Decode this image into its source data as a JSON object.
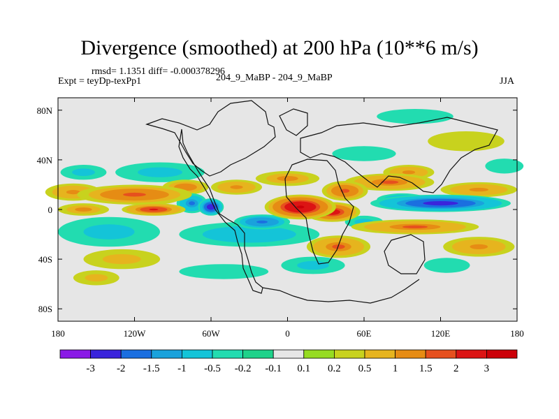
{
  "chart_data": {
    "type": "heatmap",
    "title": "Divergence (smoothed) at 200 hPa (10**6 m/s)",
    "stats": "rmsd= 1.1351 diff= -0.000378296",
    "experiment": "Expt = teyDp-texPp1",
    "case": "204_9_MaBP - 204_9_MaBP",
    "season": "JJA",
    "lon_range": [
      -180,
      180
    ],
    "lat_range": [
      -90,
      90
    ],
    "x_ticks": [
      {
        "value": -180,
        "label": "180"
      },
      {
        "value": -120,
        "label": "120W"
      },
      {
        "value": -60,
        "label": "60W"
      },
      {
        "value": 0,
        "label": "0"
      },
      {
        "value": 60,
        "label": "60E"
      },
      {
        "value": 120,
        "label": "120E"
      },
      {
        "value": 180,
        "label": "180"
      }
    ],
    "y_ticks": [
      {
        "value": 80,
        "label": "80N"
      },
      {
        "value": 40,
        "label": "40N"
      },
      {
        "value": 0,
        "label": "0"
      },
      {
        "value": -40,
        "label": "40S"
      },
      {
        "value": -80,
        "label": "80S"
      }
    ],
    "levels": [
      "-3",
      "-2",
      "-1.5",
      "-1",
      "-0.5",
      "-0.2",
      "-0.1",
      "0.1",
      "0.2",
      "0.5",
      "1",
      "1.5",
      "2",
      "3"
    ],
    "colors": [
      "#8a1ae6",
      "#3a24dc",
      "#1b6fe0",
      "#1aa2dc",
      "#14c4d8",
      "#22dcb0",
      "#1ed28a",
      "#e6e6e6",
      "#96dc22",
      "#c8d21e",
      "#e6b41e",
      "#e68c14",
      "#e6501e",
      "#dc1414",
      "#cc0008"
    ],
    "features": [
      {
        "lon": -120,
        "lat": 12,
        "rx": 45,
        "ry": 8,
        "v": 1.7
      },
      {
        "lon": -105,
        "lat": 10,
        "rx": 22,
        "ry": 6,
        "v": 1.4
      },
      {
        "lon": -168,
        "lat": 14,
        "rx": 22,
        "ry": 7,
        "v": 1.3
      },
      {
        "lon": -160,
        "lat": 0,
        "rx": 20,
        "ry": 5,
        "v": 1.0
      },
      {
        "lon": -105,
        "lat": 0,
        "rx": 25,
        "ry": 5,
        "v": 2.2
      },
      {
        "lon": -80,
        "lat": 18,
        "rx": 18,
        "ry": 6,
        "v": 1.4
      },
      {
        "lon": -40,
        "lat": 18,
        "rx": 20,
        "ry": 6,
        "v": 1.2
      },
      {
        "lon": 10,
        "lat": 2,
        "rx": 28,
        "ry": 10,
        "v": 3.0
      },
      {
        "lon": 35,
        "lat": -2,
        "rx": 22,
        "ry": 8,
        "v": 2.4
      },
      {
        "lon": 45,
        "lat": 15,
        "rx": 18,
        "ry": 8,
        "v": 1.8
      },
      {
        "lon": 0,
        "lat": 25,
        "rx": 25,
        "ry": 6,
        "v": 1.1
      },
      {
        "lon": 80,
        "lat": 22,
        "rx": 35,
        "ry": 7,
        "v": 1.5
      },
      {
        "lon": 95,
        "lat": 30,
        "rx": 20,
        "ry": 6,
        "v": 1.2
      },
      {
        "lon": 150,
        "lat": 16,
        "rx": 30,
        "ry": 6,
        "v": 1.3
      },
      {
        "lon": 100,
        "lat": -14,
        "rx": 50,
        "ry": 6,
        "v": 1.6
      },
      {
        "lon": 40,
        "lat": -30,
        "rx": 25,
        "ry": 9,
        "v": 1.6
      },
      {
        "lon": 150,
        "lat": -30,
        "rx": 28,
        "ry": 8,
        "v": 1.2
      },
      {
        "lon": -130,
        "lat": -40,
        "rx": 30,
        "ry": 8,
        "v": 0.7
      },
      {
        "lon": -150,
        "lat": -55,
        "rx": 18,
        "ry": 6,
        "v": 0.5
      },
      {
        "lon": -60,
        "lat": 2,
        "rx": 10,
        "ry": 7,
        "v": -3.0
      },
      {
        "lon": -75,
        "lat": 5,
        "rx": 12,
        "ry": 8,
        "v": -1.6
      },
      {
        "lon": -20,
        "lat": -10,
        "rx": 22,
        "ry": 6,
        "v": -1.8
      },
      {
        "lon": 120,
        "lat": 5,
        "rx": 55,
        "ry": 7,
        "v": -2.6
      },
      {
        "lon": 90,
        "lat": 8,
        "rx": 20,
        "ry": 5,
        "v": -1.4
      },
      {
        "lon": -30,
        "lat": -20,
        "rx": 55,
        "ry": 10,
        "v": -0.9
      },
      {
        "lon": -140,
        "lat": -18,
        "rx": 40,
        "ry": 12,
        "v": -0.7
      },
      {
        "lon": -100,
        "lat": 30,
        "rx": 35,
        "ry": 8,
        "v": -0.6
      },
      {
        "lon": -160,
        "lat": 30,
        "rx": 18,
        "ry": 6,
        "v": -0.6
      },
      {
        "lon": 20,
        "lat": -45,
        "rx": 25,
        "ry": 7,
        "v": -0.6
      },
      {
        "lon": 125,
        "lat": -45,
        "rx": 18,
        "ry": 6,
        "v": -0.5
      },
      {
        "lon": 60,
        "lat": -10,
        "rx": 15,
        "ry": 5,
        "v": -0.8
      },
      {
        "lon": 100,
        "lat": 75,
        "rx": 30,
        "ry": 6,
        "v": -0.4
      },
      {
        "lon": 140,
        "lat": 55,
        "rx": 30,
        "ry": 8,
        "v": 0.3
      },
      {
        "lon": 170,
        "lat": 35,
        "rx": 15,
        "ry": 6,
        "v": -0.5
      },
      {
        "lon": -50,
        "lat": -50,
        "rx": 35,
        "ry": 6,
        "v": -0.5
      },
      {
        "lon": 60,
        "lat": 45,
        "rx": 25,
        "ry": 6,
        "v": -0.3
      }
    ]
  }
}
